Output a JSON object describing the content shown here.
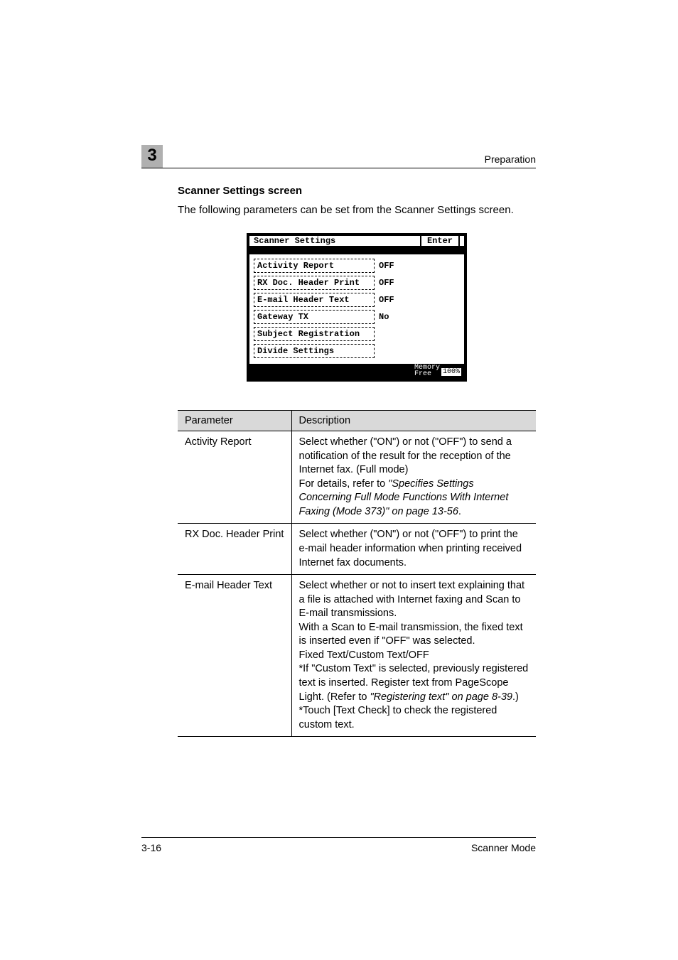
{
  "header": {
    "chapter_number": "3",
    "running_head": "Preparation"
  },
  "section": {
    "heading": "Scanner Settings screen",
    "intro": "The following parameters can be set from the Scanner Settings screen."
  },
  "lcd": {
    "title": "Scanner Settings",
    "enter_label": "Enter",
    "rows": [
      {
        "label": "Activity Report",
        "value": "OFF"
      },
      {
        "label": "RX Doc. Header Print",
        "value": "OFF"
      },
      {
        "label": "E-mail Header Text",
        "value": "OFF"
      },
      {
        "label": "Gateway TX",
        "value": "No"
      },
      {
        "label": "Subject Registration",
        "value": ""
      },
      {
        "label": "Divide Settings",
        "value": ""
      }
    ],
    "footer_label": "Memory\nFree",
    "footer_value": "100%"
  },
  "table": {
    "header_param": "Parameter",
    "header_desc": "Description",
    "rows": [
      {
        "param": "Activity Report",
        "desc_pre": "Select whether (\"ON\") or not (\"OFF\") to send a notification of the result for the reception of the Internet fax. (Full mode)\nFor details, refer to ",
        "desc_ref": "\"Specifies Settings Concerning Full Mode Functions With Internet Faxing (Mode 373)\" on page 13-56",
        "desc_post": "."
      },
      {
        "param": "RX Doc. Header Print",
        "desc_pre": "Select whether (\"ON\") or not (\"OFF\") to print the e-mail header information when printing received Internet fax documents.",
        "desc_ref": "",
        "desc_post": ""
      },
      {
        "param": "E-mail Header Text",
        "desc_pre": "Select whether or not to insert text explaining that a file is attached with Internet faxing and Scan to E-mail transmissions.\nWith a Scan to E-mail transmission, the fixed text is inserted even if \"OFF\" was selected.\nFixed Text/Custom Text/OFF\n*If \"Custom Text\" is selected, previously registered text is inserted. Register text from PageScope Light. (Refer to ",
        "desc_ref": "\"Registering text\" on page 8-39",
        "desc_post": ".)\n*Touch [Text Check] to check the registered custom text."
      }
    ]
  },
  "footer": {
    "page_number": "3-16",
    "mode": "Scanner Mode"
  },
  "colors": {
    "chapter_bg": "#b0b0b0",
    "table_header_bg": "#d9d9d9",
    "text": "#000000",
    "page_bg": "#ffffff"
  }
}
